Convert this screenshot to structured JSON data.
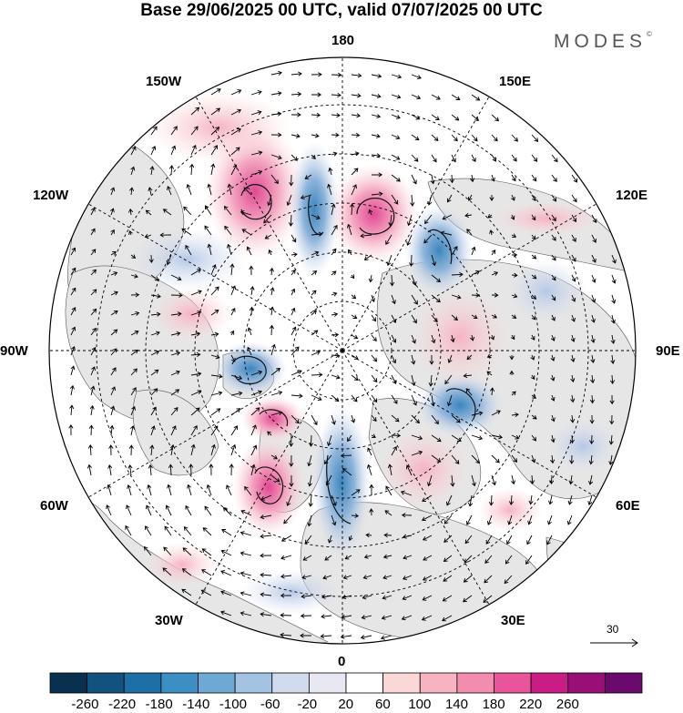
{
  "title": "Base 29/06/2025 00 UTC, valid 07/07/2025 00 UTC",
  "logo": "MODES",
  "logo_mark": "©",
  "longitude_labels": {
    "lon_180": "180",
    "lon_150e": "150E",
    "lon_120e": "120E",
    "lon_90e": "90E",
    "lon_60e": "60E",
    "lon_30e": "30E",
    "lon_0": "0",
    "lon_30w": "30W",
    "lon_60w": "60W",
    "lon_90w": "90W",
    "lon_120w": "120W",
    "lon_150w": "150W"
  },
  "vector_scale": {
    "label": "30"
  },
  "colorbar": {
    "ticks": [
      "-260",
      "-220",
      "-180",
      "-140",
      "-100",
      "-60",
      "-20",
      "20",
      "60",
      "100",
      "140",
      "180",
      "220",
      "260"
    ],
    "colors": [
      "#08304f",
      "#12527e",
      "#1e6fa5",
      "#3b8fc2",
      "#6ea8d4",
      "#a4c3e2",
      "#d0dcee",
      "#e8e8f2",
      "#ffffff",
      "#fbd8d8",
      "#f7b3c2",
      "#f28db0",
      "#e8559a",
      "#c91c84",
      "#990f78",
      "#6a0a6e"
    ]
  }
}
